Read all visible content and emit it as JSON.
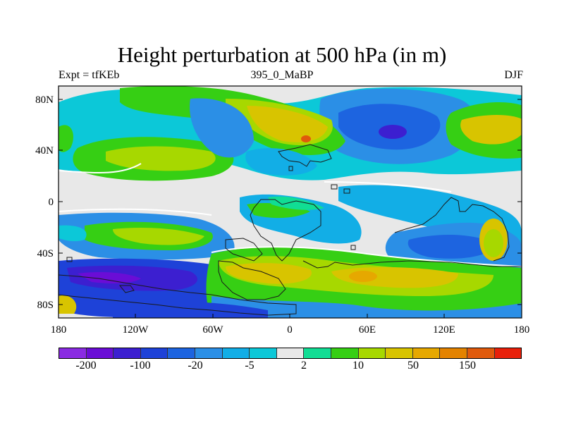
{
  "header": {
    "title": "Height perturbation at 500 hPa (in m)",
    "left": "Expt = tfKEb",
    "center": "395_0_MaBP",
    "right": "DJF"
  },
  "map": {
    "x_ticks": [
      "180",
      "120W",
      "60W",
      "0",
      "60E",
      "120E",
      "180"
    ],
    "y_ticks": [
      "80N",
      "40N",
      "0",
      "40S",
      "80S"
    ],
    "projection": "cylindrical equidistant",
    "grid": false
  },
  "colorbar": {
    "colors": [
      "#8a2be2",
      "#6a0dd6",
      "#3c1fd0",
      "#1e42d8",
      "#1d64e0",
      "#2b8fe6",
      "#12aee6",
      "#0cc8d8",
      "#e8e8e8",
      "#11dd94",
      "#36cf14",
      "#a7d800",
      "#d8c400",
      "#e6a800",
      "#e48300",
      "#e05a0c",
      "#e8200a"
    ],
    "labels": [
      "-200",
      "-100",
      "-20",
      "-5",
      "2",
      "10",
      "50",
      "150"
    ]
  },
  "chart_data": {
    "type": "heatmap",
    "title": "Height perturbation at 500 hPa (in m)",
    "xlabel": "",
    "ylabel": "",
    "xlim": [
      -180,
      180
    ],
    "ylim": [
      -90,
      90
    ],
    "levels": [
      -200,
      -100,
      -20,
      -5,
      2,
      10,
      50,
      150
    ],
    "features": [
      {
        "description": "strong negative low",
        "lon": 65,
        "lat": 55,
        "value": -100
      },
      {
        "description": "negative low band",
        "lon": -140,
        "lat": -60,
        "value": -20
      },
      {
        "description": "positive high",
        "lon": 5,
        "lat": 45,
        "value": 50
      },
      {
        "description": "positive high",
        "lon": 160,
        "lat": 50,
        "value": 20
      },
      {
        "description": "positive band",
        "lon": 50,
        "lat": -55,
        "value": 50
      },
      {
        "description": "negative trough",
        "lon": -50,
        "lat": 65,
        "value": -20
      },
      {
        "description": "negative trough",
        "lon": 115,
        "lat": 25,
        "value": -20
      }
    ]
  }
}
